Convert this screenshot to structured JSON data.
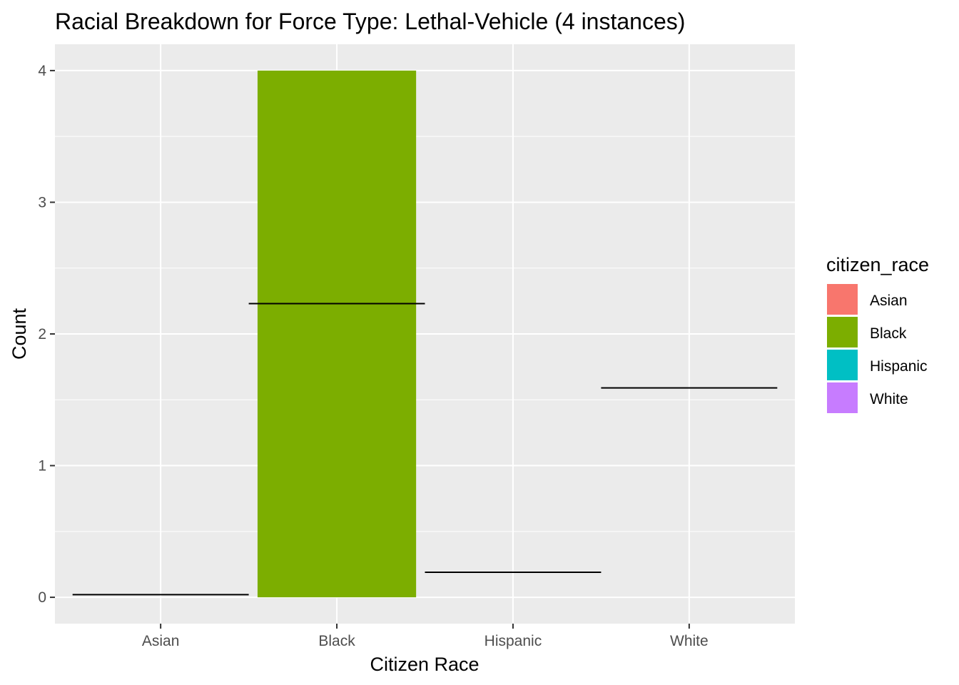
{
  "chart_data": {
    "type": "bar",
    "title": "Racial Breakdown for Force Type: Lethal-Vehicle (4 instances)",
    "xlabel": "Citizen Race",
    "ylabel": "Count",
    "categories": [
      "Asian",
      "Black",
      "Hispanic",
      "White"
    ],
    "values": [
      0,
      4,
      0,
      0
    ],
    "reference_lines": [
      0.02,
      2.23,
      0.19,
      1.59
    ],
    "ylim": [
      -0.2,
      4.2
    ],
    "yticks": [
      0,
      1,
      2,
      3,
      4
    ],
    "grid": true,
    "legend": {
      "title": "citizen_race",
      "position": "right",
      "entries": [
        {
          "label": "Asian",
          "color": "#F8766D"
        },
        {
          "label": "Black",
          "color": "#7CAE00"
        },
        {
          "label": "Hispanic",
          "color": "#00BFC4"
        },
        {
          "label": "White",
          "color": "#C77CFF"
        }
      ]
    },
    "colors": {
      "panel_background": "#EBEBEB",
      "grid_line": "#FFFFFF",
      "reference_line": "#000000",
      "tick_text": "#4D4D4D",
      "tick_mark": "#333333"
    }
  }
}
